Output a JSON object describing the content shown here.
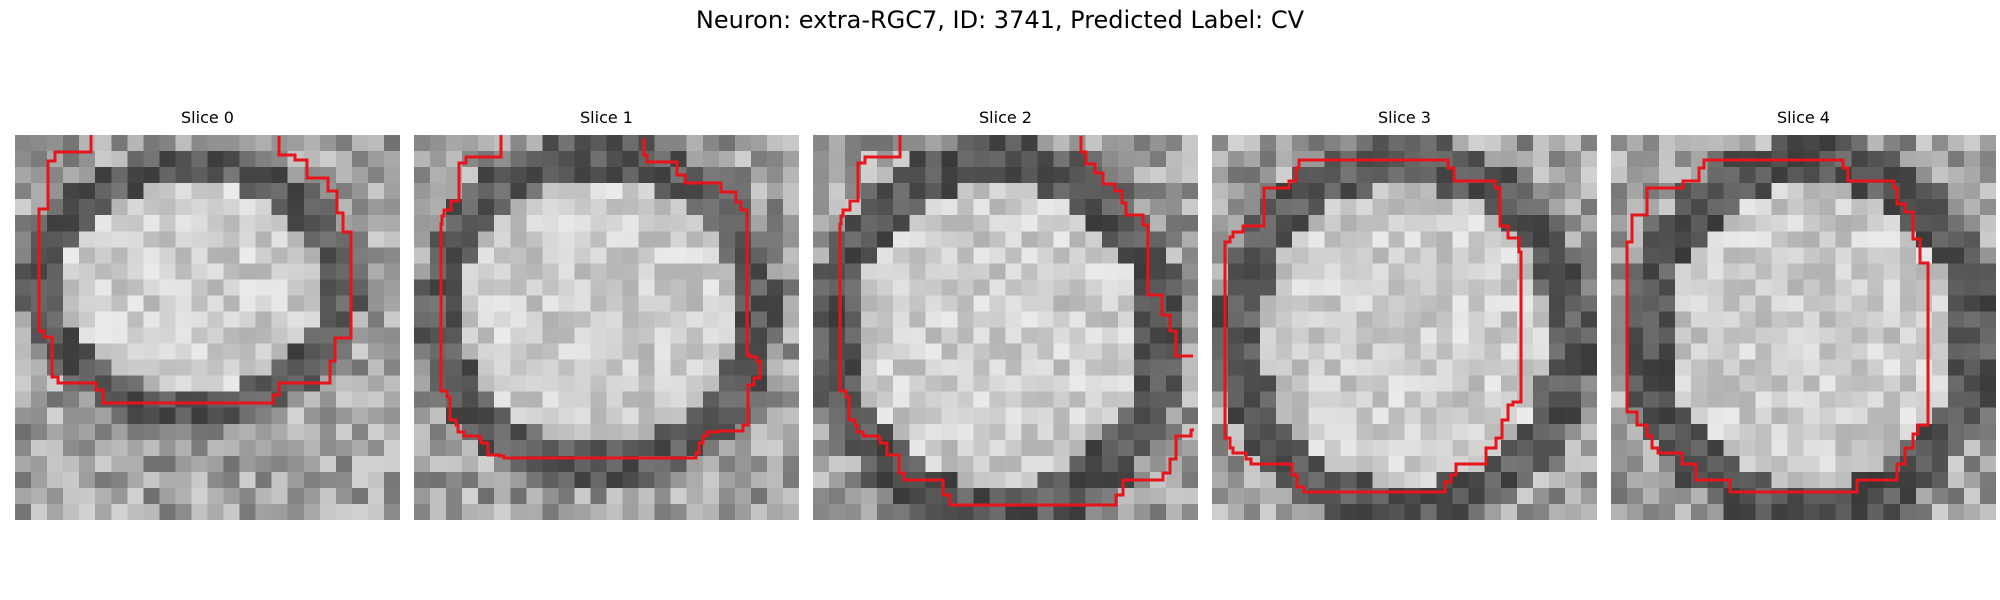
{
  "figure": {
    "title": "Neuron: extra-RGC7, ID: 3741, Predicted Label: CV"
  },
  "panels": [
    {
      "title": "Slice 0"
    },
    {
      "title": "Slice 1"
    },
    {
      "title": "Slice 2"
    },
    {
      "title": "Slice 3"
    },
    {
      "title": "Slice 4"
    }
  ],
  "colors": {
    "contour": "#e8141c",
    "background": "#ffffff"
  }
}
